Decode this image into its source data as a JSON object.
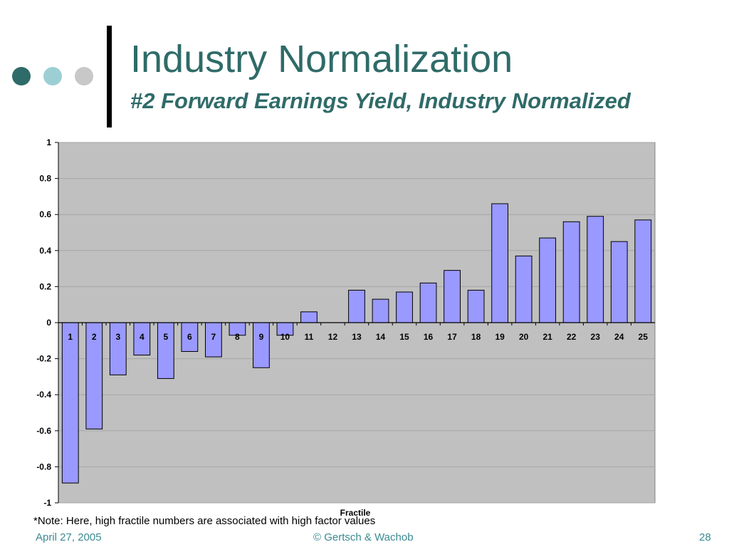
{
  "slide": {
    "title": "Industry Normalization",
    "subtitle": "#2 Forward Earnings Yield, Industry Normalized",
    "note": "*Note: Here, high fractile numbers are associated with high factor values",
    "footer_date": "April 27, 2005",
    "footer_copyright": "© Gertsch & Wachob",
    "page_number": "28"
  },
  "colors": {
    "title": "#2f6b68",
    "footer": "#3b8a92",
    "dot1": "#2f6b68",
    "dot2": "#9ccfd4",
    "dot3": "#c8c8c8",
    "plot_bg": "#c0c0c0",
    "bar_fill": "#9999ff",
    "bar_stroke": "#000000",
    "gridline": "#a6a6a6"
  },
  "chart_data": {
    "type": "bar",
    "xlabel": "Fractile",
    "ylabel": "",
    "ylim": [
      -1,
      1
    ],
    "yticks": [
      "1",
      "0.8",
      "0.6",
      "0.4",
      "0.2",
      "0",
      "-0.2",
      "-0.4",
      "-0.6",
      "-0.8",
      "-1"
    ],
    "grid": true,
    "legend": "none",
    "categories": [
      "1",
      "2",
      "3",
      "4",
      "5",
      "6",
      "7",
      "8",
      "9",
      "10",
      "11",
      "12",
      "13",
      "14",
      "15",
      "16",
      "17",
      "18",
      "19",
      "20",
      "21",
      "22",
      "23",
      "24",
      "25"
    ],
    "values": [
      -0.89,
      -0.59,
      -0.29,
      -0.18,
      -0.31,
      -0.16,
      -0.19,
      -0.07,
      -0.25,
      -0.07,
      0.06,
      0.0,
      0.18,
      0.13,
      0.17,
      0.22,
      0.29,
      0.18,
      0.66,
      0.37,
      0.47,
      0.56,
      0.59,
      0.45,
      0.57
    ]
  }
}
